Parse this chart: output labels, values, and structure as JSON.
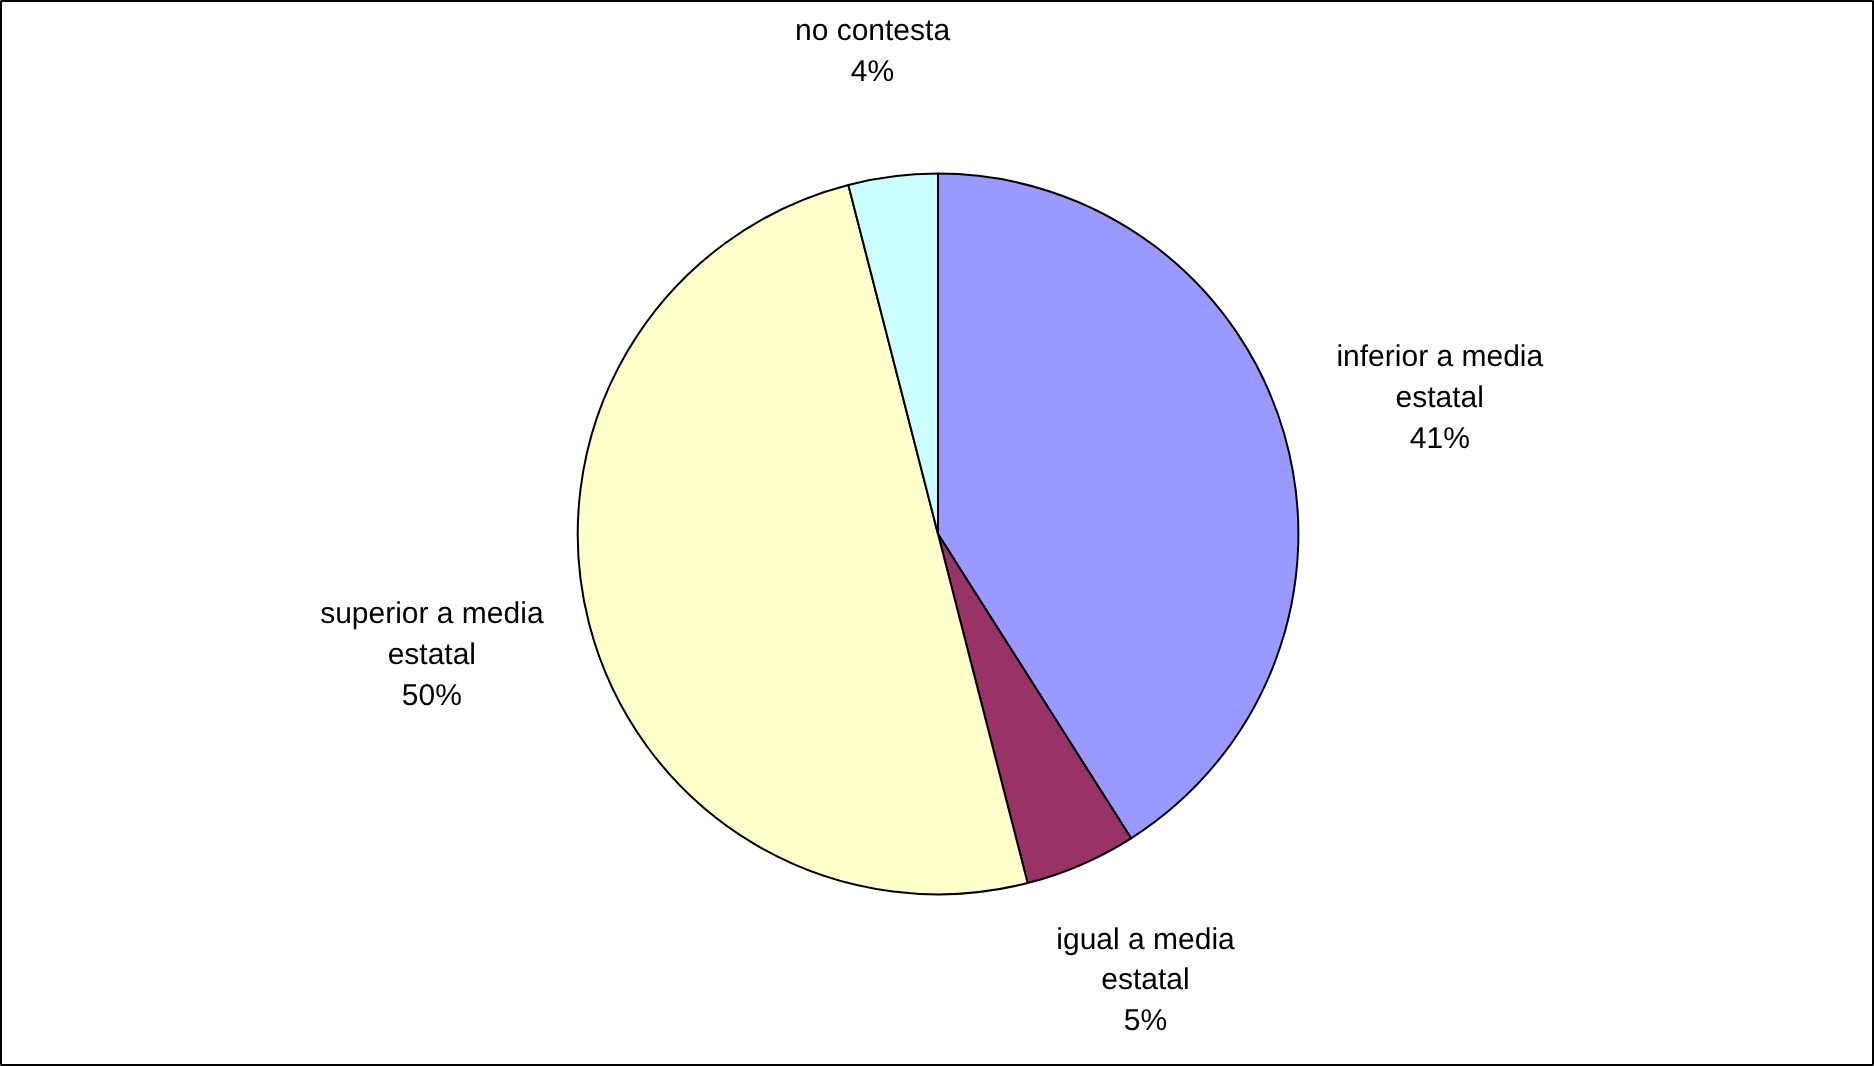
{
  "chart_data": {
    "type": "pie",
    "categories": [
      "inferior a media estatal",
      "igual a media estatal",
      "superior a media estatal",
      "no contesta"
    ],
    "values": [
      41,
      5,
      50,
      4
    ],
    "colors": [
      "#9999ff",
      "#993366",
      "#ffffcc",
      "#ccffff"
    ],
    "value_labels": [
      "41%",
      "5%",
      "50%",
      "4%"
    ]
  }
}
